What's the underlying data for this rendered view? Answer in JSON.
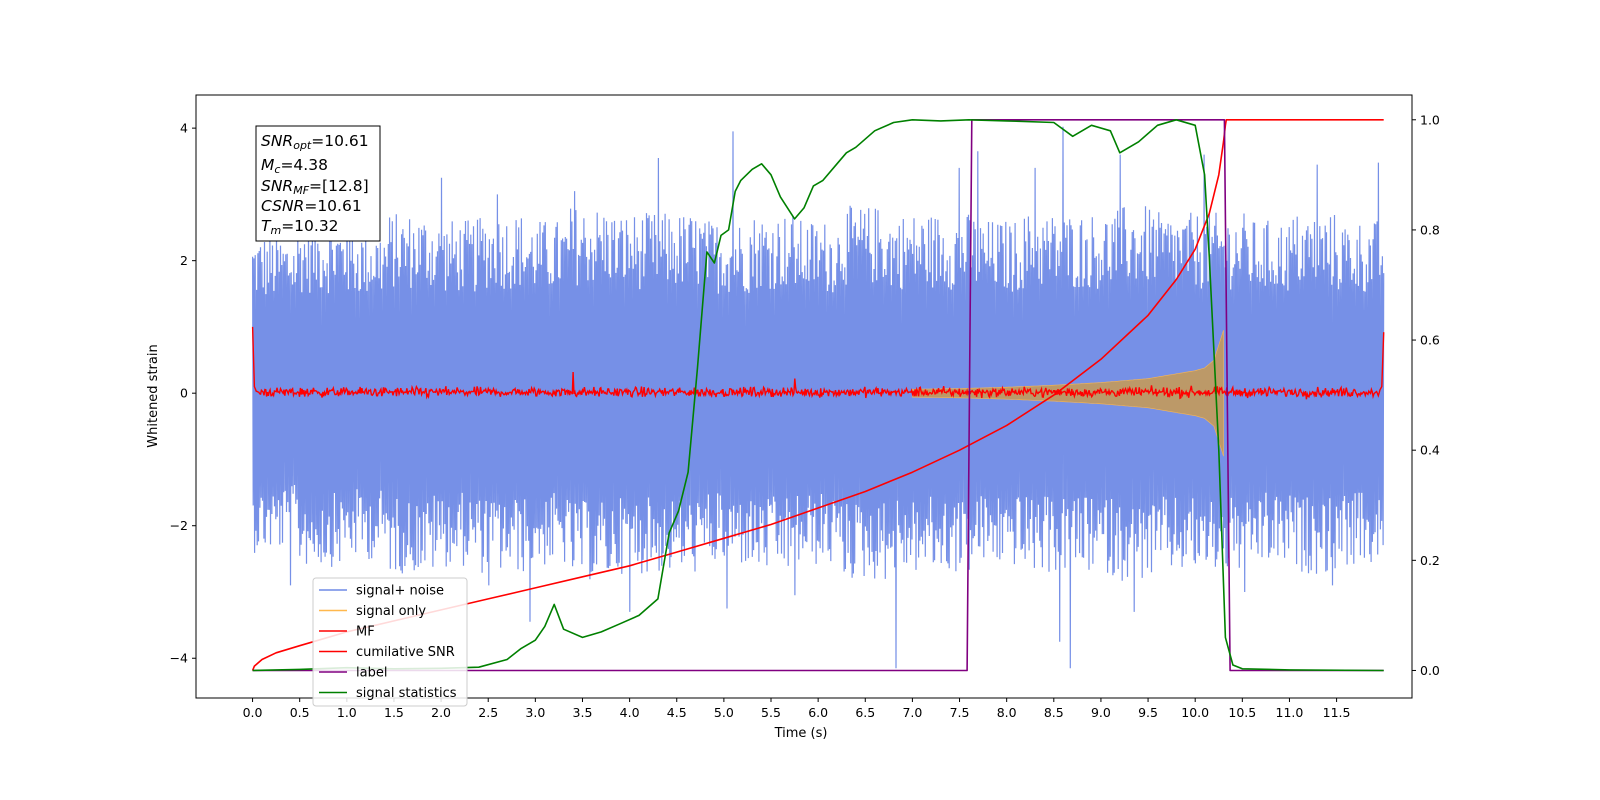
{
  "chart_data": {
    "type": "line",
    "xlabel": "Time (s)",
    "ylabel": "Whitened strain",
    "y2label": "",
    "xlim": [
      -0.6,
      12.3
    ],
    "ylim": [
      -4.6,
      4.5
    ],
    "y2lim": [
      -0.05,
      1.045
    ],
    "x_ticks": [
      "0.0",
      "0.5",
      "1.0",
      "1.5",
      "2.0",
      "2.5",
      "3.0",
      "3.5",
      "4.0",
      "4.5",
      "5.0",
      "5.5",
      "6.0",
      "6.5",
      "7.0",
      "7.5",
      "8.0",
      "8.5",
      "9.0",
      "9.5",
      "10.0",
      "10.5",
      "11.0",
      "11.5"
    ],
    "y_ticks": [
      "4",
      "2",
      "0",
      "−2",
      "−4"
    ],
    "y2_ticks": [
      "1.0",
      "0.8",
      "0.6",
      "0.4",
      "0.2",
      "0.0"
    ],
    "info_box": {
      "snr_opt": {
        "base": "SNR",
        "sub": "opt",
        "value": "=10.61"
      },
      "mc": {
        "base": "M",
        "sub": "c",
        "value": "=4.38"
      },
      "snr_mf": {
        "base": "SNR",
        "sub": "MF",
        "value": "=[12.8]"
      },
      "csnr": {
        "base": "CSNR",
        "value": "=10.61"
      },
      "tm": {
        "base": "T",
        "sub": "m",
        "value": "=10.32"
      }
    },
    "legend": {
      "placement": "lower-left",
      "entries": [
        {
          "label": "signal+ noise",
          "color": "#6f8ae6"
        },
        {
          "label": "signal only",
          "color": "#ffb84d"
        },
        {
          "label": "MF",
          "color": "#ff0000"
        },
        {
          "label": "cumilative SNR",
          "color": "#ff0000"
        },
        {
          "label": "label",
          "color": "#800080"
        },
        {
          "label": "signal statistics",
          "color": "#008000"
        }
      ]
    },
    "series": [
      {
        "name": "signal+ noise",
        "axis": "left",
        "color": "#6f8ae6",
        "x_range": [
          0.0,
          12.0
        ],
        "envelope_hi": [
          2.3,
          2.5,
          2.4,
          2.6,
          2.5,
          2.6,
          2.5,
          2.7,
          2.6,
          2.6,
          2.5,
          2.6,
          2.5,
          2.7,
          2.6,
          2.6,
          2.5,
          2.6,
          2.6,
          2.7,
          2.6,
          2.6,
          2.5,
          2.6,
          2.5
        ],
        "envelope_lo": [
          -2.3,
          -2.5,
          -2.4,
          -2.6,
          -2.5,
          -2.6,
          -2.5,
          -2.7,
          -2.6,
          -2.6,
          -2.5,
          -2.6,
          -2.5,
          -2.7,
          -2.6,
          -2.6,
          -2.5,
          -2.6,
          -2.6,
          -2.7,
          -2.6,
          -2.6,
          -2.5,
          -2.6,
          -2.5
        ],
        "spikes": [
          [
            1.0,
            3.3
          ],
          [
            2.0,
            3.25
          ],
          [
            2.6,
            3.0
          ],
          [
            3.42,
            3.05
          ],
          [
            4.3,
            3.55
          ],
          [
            5.1,
            3.95
          ],
          [
            7.5,
            3.4
          ],
          [
            7.7,
            3.65
          ],
          [
            8.6,
            4.02
          ],
          [
            8.3,
            3.4
          ],
          [
            9.2,
            3.6
          ],
          [
            10.1,
            3.6
          ],
          [
            11.3,
            3.45
          ],
          [
            11.95,
            3.48
          ],
          [
            0.4,
            -2.9
          ],
          [
            2.5,
            -2.9
          ],
          [
            2.95,
            -3.45
          ],
          [
            4.0,
            -3.3
          ],
          [
            5.03,
            -3.25
          ],
          [
            5.75,
            -3.05
          ],
          [
            6.83,
            -4.15
          ],
          [
            8.56,
            -3.75
          ],
          [
            8.68,
            -4.15
          ],
          [
            9.35,
            -3.3
          ],
          [
            10.52,
            -3.0
          ],
          [
            11.45,
            -2.9
          ]
        ]
      },
      {
        "name": "signal only",
        "axis": "left",
        "color": "#ffb84d",
        "x": [
          7.0,
          7.5,
          8.0,
          8.5,
          9.0,
          9.5,
          10.0,
          10.1,
          10.2,
          10.3
        ],
        "amplitude": [
          0.06,
          0.07,
          0.09,
          0.12,
          0.16,
          0.22,
          0.34,
          0.38,
          0.5,
          0.95
        ]
      },
      {
        "name": "MF",
        "axis": "left",
        "color": "#ff0000",
        "x_range": [
          0.0,
          12.0
        ],
        "start_value": 1.0,
        "end_value": 0.92,
        "band": [
          -0.12,
          0.15
        ],
        "spikes": [
          [
            3.4,
            0.32
          ],
          [
            5.75,
            0.22
          ]
        ]
      },
      {
        "name": "cumilative SNR",
        "axis": "right",
        "color": "#ff0000",
        "x": [
          0.0,
          0.02,
          0.1,
          0.25,
          0.5,
          1.0,
          1.5,
          2.0,
          2.5,
          3.0,
          3.5,
          4.0,
          4.5,
          5.0,
          5.5,
          6.0,
          6.5,
          7.0,
          7.5,
          8.0,
          8.5,
          9.0,
          9.5,
          9.8,
          10.0,
          10.15,
          10.25,
          10.3,
          10.32,
          10.33,
          12.0
        ],
        "y": [
          0.0,
          0.008,
          0.02,
          0.032,
          0.045,
          0.07,
          0.09,
          0.11,
          0.13,
          0.15,
          0.17,
          0.19,
          0.215,
          0.24,
          0.265,
          0.295,
          0.325,
          0.36,
          0.4,
          0.445,
          0.5,
          0.565,
          0.645,
          0.71,
          0.765,
          0.83,
          0.9,
          0.96,
          0.99,
          1.0,
          1.0
        ]
      },
      {
        "name": "label",
        "axis": "right",
        "color": "#800080",
        "x": [
          0.0,
          7.58,
          7.63,
          10.31,
          10.37,
          12.0
        ],
        "y": [
          0.0,
          0.0,
          1.0,
          1.0,
          0.0,
          0.0
        ]
      },
      {
        "name": "signal statistics",
        "axis": "right",
        "color": "#008000",
        "x": [
          0.0,
          0.5,
          1.0,
          1.5,
          2.0,
          2.4,
          2.7,
          2.85,
          3.0,
          3.1,
          3.2,
          3.3,
          3.5,
          3.7,
          3.9,
          4.1,
          4.3,
          4.42,
          4.52,
          4.62,
          4.72,
          4.82,
          4.9,
          4.97,
          5.05,
          5.12,
          5.18,
          5.3,
          5.4,
          5.5,
          5.6,
          5.75,
          5.85,
          5.95,
          6.05,
          6.2,
          6.3,
          6.4,
          6.6,
          6.8,
          7.0,
          7.3,
          7.6,
          8.0,
          8.5,
          8.7,
          8.9,
          9.1,
          9.2,
          9.4,
          9.6,
          9.8,
          10.0,
          10.1,
          10.15,
          10.25,
          10.32,
          10.4,
          10.5,
          11.0,
          12.0
        ],
        "y": [
          0.0,
          0.002,
          0.005,
          0.003,
          0.004,
          0.006,
          0.02,
          0.04,
          0.055,
          0.08,
          0.12,
          0.075,
          0.06,
          0.07,
          0.085,
          0.1,
          0.13,
          0.25,
          0.29,
          0.36,
          0.55,
          0.76,
          0.74,
          0.79,
          0.8,
          0.87,
          0.89,
          0.91,
          0.92,
          0.9,
          0.86,
          0.82,
          0.84,
          0.88,
          0.89,
          0.92,
          0.94,
          0.95,
          0.98,
          0.995,
          1.0,
          0.998,
          1.0,
          0.998,
          0.995,
          0.97,
          0.99,
          0.98,
          0.94,
          0.96,
          0.99,
          1.0,
          0.99,
          0.9,
          0.75,
          0.4,
          0.06,
          0.01,
          0.003,
          0.001,
          0.0
        ]
      }
    ]
  }
}
